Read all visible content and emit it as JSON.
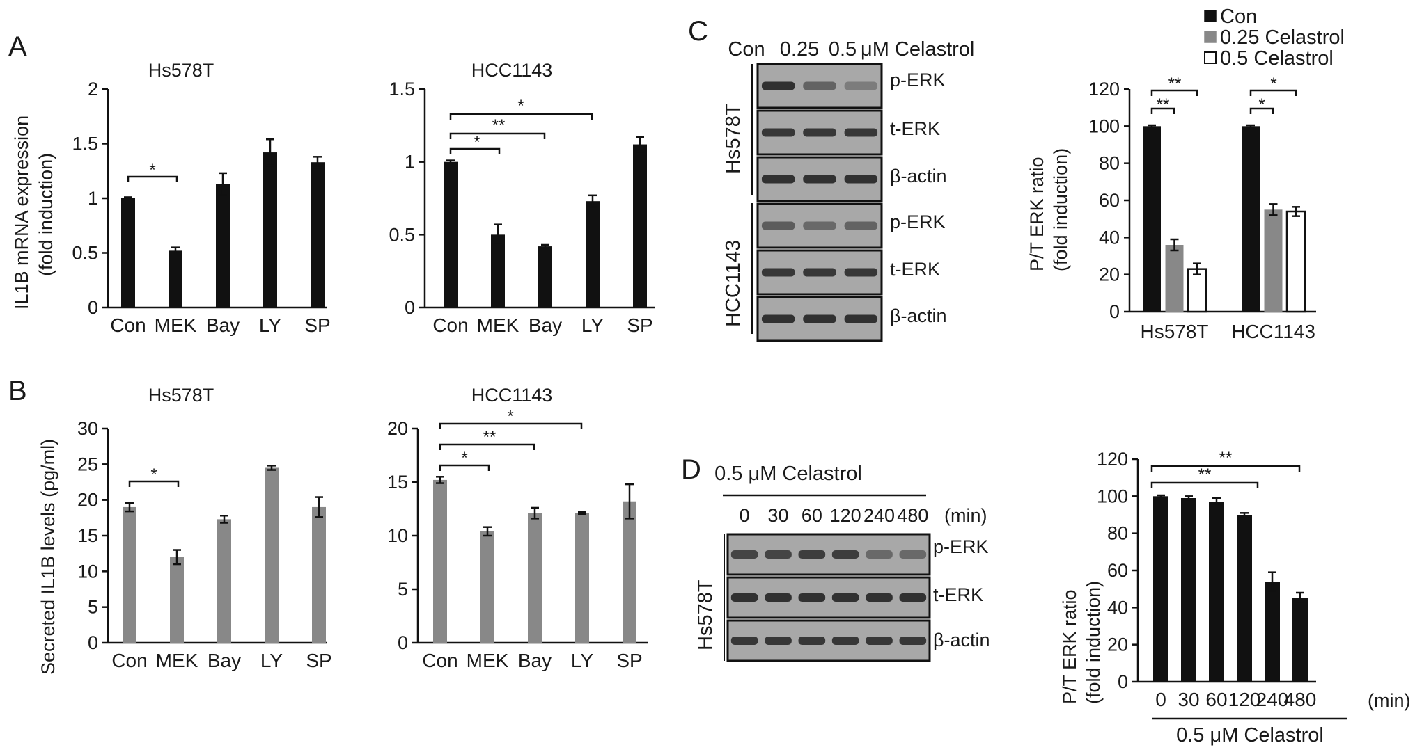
{
  "colors": {
    "black_bar": "#111111",
    "gray_bar": "#888888",
    "white_bar": "#ffffff",
    "blot_background": "#a8a8a8",
    "blot_band": "#2a2a2a"
  },
  "panels": {
    "A": {
      "letter": "A",
      "ylabel_line1": "IL1B mRNA expression",
      "ylabel_line2": "(fold induction)",
      "left": {
        "title": "Hs578T",
        "sig": [
          "*"
        ]
      },
      "right": {
        "title": "HCC1143",
        "sig": [
          "*",
          "**",
          "*"
        ]
      }
    },
    "B": {
      "letter": "B",
      "ylabel": "Secreted IL1B levels (pg/ml)",
      "left": {
        "title": "Hs578T",
        "sig": [
          "*"
        ]
      },
      "right": {
        "title": "HCC1143",
        "sig": [
          "*",
          "**",
          "*"
        ]
      }
    },
    "C": {
      "letter": "C",
      "blot_header": [
        "Con",
        "0.25",
        "0.5",
        "μM Celastrol"
      ],
      "blot_rows": [
        "p-ERK",
        "t-ERK",
        "β-actin",
        "p-ERK",
        "t-ERK",
        "β-actin"
      ],
      "blot_groups": [
        "Hs578T",
        "HCC1143"
      ],
      "legend": [
        "Con",
        "0.25 Celastrol",
        "0.5 Celastrol"
      ],
      "ylabel_line1": "P/T ERK ratio",
      "ylabel_line2": "(fold induction)",
      "sig": [
        "**",
        "**",
        "*",
        "*"
      ]
    },
    "D": {
      "letter": "D",
      "blot_title": "0.5 μM Celastrol",
      "blot_times": [
        "0",
        "30",
        "60",
        "120",
        "240",
        "480"
      ],
      "blot_unit": "(min)",
      "blot_rows": [
        "p-ERK",
        "t-ERK",
        "β-actin"
      ],
      "blot_group": "Hs578T",
      "ylabel_line1": "P/T ERK ratio",
      "ylabel_line2": "(fold induction)",
      "x_unit": "(min)",
      "x_caption": "0.5 μM Celastrol",
      "sig": [
        "**",
        "**"
      ]
    }
  },
  "chart_data": [
    {
      "id": "A-left",
      "type": "bar",
      "title": "Hs578T",
      "ylabel": "IL1B mRNA expression (fold induction)",
      "categories": [
        "Con",
        "MEK",
        "Bay",
        "LY",
        "SP"
      ],
      "values": [
        1.0,
        0.52,
        1.13,
        1.42,
        1.33
      ],
      "errors": [
        0.01,
        0.03,
        0.1,
        0.12,
        0.05
      ],
      "ylim": [
        0,
        2
      ],
      "yticks": [
        0,
        0.5,
        1,
        1.5,
        2
      ],
      "color": "#111111"
    },
    {
      "id": "A-right",
      "type": "bar",
      "title": "HCC1143",
      "categories": [
        "Con",
        "MEK",
        "Bay",
        "LY",
        "SP"
      ],
      "values": [
        1.0,
        0.5,
        0.42,
        0.73,
        1.12
      ],
      "errors": [
        0.01,
        0.07,
        0.01,
        0.04,
        0.05
      ],
      "ylim": [
        0,
        1.5
      ],
      "yticks": [
        0,
        0.5,
        1,
        1.5
      ],
      "color": "#111111"
    },
    {
      "id": "B-left",
      "type": "bar",
      "title": "Hs578T",
      "ylabel": "Secreted IL1B levels (pg/ml)",
      "categories": [
        "Con",
        "MEK",
        "Bay",
        "LY",
        "SP"
      ],
      "values": [
        19.0,
        12.0,
        17.3,
        24.5,
        19.0
      ],
      "errors": [
        0.6,
        1.0,
        0.5,
        0.3,
        1.4
      ],
      "ylim": [
        0,
        30
      ],
      "yticks": [
        0,
        5,
        10,
        15,
        20,
        25,
        30
      ],
      "color": "#888888"
    },
    {
      "id": "B-right",
      "type": "bar",
      "title": "HCC1143",
      "categories": [
        "Con",
        "MEK",
        "Bay",
        "LY",
        "SP"
      ],
      "values": [
        15.2,
        10.4,
        12.1,
        12.1,
        13.2
      ],
      "errors": [
        0.3,
        0.4,
        0.5,
        0.1,
        1.6
      ],
      "ylim": [
        0,
        20
      ],
      "yticks": [
        0,
        5,
        10,
        15,
        20
      ],
      "color": "#888888"
    },
    {
      "id": "C-bar",
      "type": "bar",
      "ylabel": "P/T ERK ratio (fold induction)",
      "categories": [
        "Hs578T",
        "HCC1143"
      ],
      "series": [
        {
          "name": "Con",
          "values": [
            100,
            100
          ],
          "errors": [
            0.5,
            0.5
          ],
          "color": "#111111"
        },
        {
          "name": "0.25 Celastrol",
          "values": [
            36,
            55
          ],
          "errors": [
            3,
            3
          ],
          "color": "#888888"
        },
        {
          "name": "0.5 Celastrol",
          "values": [
            23,
            54
          ],
          "errors": [
            3,
            2.5
          ],
          "color": "#ffffff"
        }
      ],
      "ylim": [
        0,
        120
      ],
      "yticks": [
        0,
        20,
        40,
        60,
        80,
        100,
        120
      ]
    },
    {
      "id": "D-bar",
      "type": "bar",
      "ylabel": "P/T ERK ratio (fold induction)",
      "categories": [
        "0",
        "30",
        "60",
        "120",
        "240",
        "480"
      ],
      "values": [
        100,
        99,
        97,
        90,
        54,
        45
      ],
      "errors": [
        0.5,
        1,
        2,
        1,
        5,
        3
      ],
      "ylim": [
        0,
        120
      ],
      "yticks": [
        0,
        20,
        40,
        60,
        80,
        100,
        120
      ],
      "color": "#111111"
    }
  ]
}
